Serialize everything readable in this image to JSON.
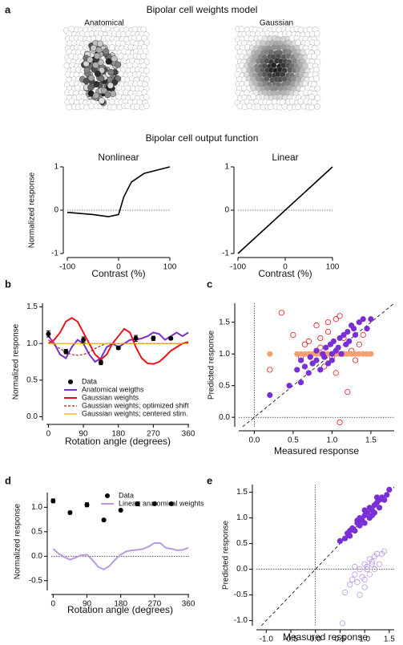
{
  "weights_model": {
    "panel": "a",
    "title": "Bipolar cell weights model",
    "images": [
      {
        "label": "Anatomical",
        "color": "#7a2ed6"
      },
      {
        "label": "Gaussian",
        "color": "#e8141c"
      }
    ]
  },
  "output_function_title": "Bipolar cell output function",
  "chart_data": [
    {
      "type": "line",
      "title": "Nonlinear",
      "xlabel": "Contrast (%)",
      "ylabel": "Normalized response",
      "x": [
        -100,
        -50,
        -20,
        0,
        10,
        25,
        50,
        100
      ],
      "xlim": [
        -100,
        100
      ],
      "xticks": [
        -100,
        0,
        100
      ],
      "ylim": [
        -1,
        1
      ],
      "yticks": [
        -1,
        0,
        1
      ],
      "zero_lines": "y",
      "series": [
        {
          "style": "line",
          "color": "#000000",
          "values": [
            -0.05,
            -0.1,
            -0.15,
            -0.1,
            0.3,
            0.65,
            0.85,
            1.0
          ]
        }
      ]
    },
    {
      "type": "line",
      "title": "Linear",
      "xlabel": "Contrast (%)",
      "x": [
        -100,
        100
      ],
      "xlim": [
        -100,
        100
      ],
      "xticks": [
        -100,
        0,
        100
      ],
      "ylim": [
        -1,
        1
      ],
      "yticks": [
        -1,
        0,
        1
      ],
      "zero_lines": "y",
      "series": [
        {
          "style": "line",
          "color": "#000000",
          "values": [
            -1,
            1
          ]
        }
      ]
    },
    {
      "type": "line",
      "panel": "b",
      "xlabel": "Rotation angle (degrees)",
      "ylabel": "Normalized response",
      "x": [
        0,
        15,
        30,
        45,
        60,
        75,
        90,
        105,
        120,
        135,
        150,
        165,
        180,
        195,
        210,
        225,
        240,
        255,
        270,
        285,
        300,
        315,
        330,
        345,
        360
      ],
      "xlim": [
        -5,
        362
      ],
      "xticks": [
        0,
        90,
        180,
        270,
        360
      ],
      "ylim": [
        -0.05,
        1.55
      ],
      "yticks": [
        {
          "value": 0,
          "label": "0.0"
        },
        0.5,
        {
          "value": 1,
          "label": "1.0"
        },
        1.5
      ],
      "legend": "lower left",
      "series": [
        {
          "name": "Data",
          "style": "points",
          "color": "#000000",
          "x": [
            0,
            45,
            90,
            135,
            180,
            225,
            270,
            315
          ],
          "values": [
            1.13,
            0.89,
            1.05,
            0.74,
            0.94,
            1.07,
            1.07,
            1.07
          ],
          "errors": [
            0.04,
            0.03,
            0.04,
            0.03,
            0.02,
            0.04,
            0.03,
            0.02
          ]
        },
        {
          "name": "Anatomical weigths",
          "style": "line",
          "color": "#7a2ed6",
          "values": [
            1.1,
            1.0,
            0.85,
            0.8,
            0.95,
            1.05,
            1.0,
            0.85,
            0.75,
            0.8,
            0.95,
            1.0,
            0.95,
            1.0,
            1.05,
            1.05,
            1.07,
            1.1,
            1.15,
            1.13,
            1.05,
            1.1,
            1.15,
            1.1,
            1.15
          ]
        },
        {
          "name": "Gaussian weights",
          "style": "line",
          "color": "#e8141c",
          "values": [
            1.0,
            1.05,
            1.15,
            1.3,
            1.35,
            1.3,
            1.15,
            1.0,
            0.85,
            0.78,
            0.85,
            1.0,
            1.1,
            1.2,
            1.15,
            0.95,
            0.8,
            0.73,
            0.72,
            0.75,
            0.82,
            0.9,
            0.95,
            1.0,
            1.02
          ]
        },
        {
          "name": "Gaussian weights; optimized shift",
          "style": "dashed",
          "color": "#b0201a",
          "values": [
            1.05,
            0.98,
            0.93,
            0.88,
            0.85,
            0.84,
            0.85,
            0.88,
            0.93,
            0.97,
            1.0,
            1.0,
            1.0,
            1.0,
            1.0,
            1.0,
            1.0,
            1.0,
            1.0,
            1.0,
            1.0,
            1.0,
            1.0,
            1.0,
            1.0
          ]
        },
        {
          "name": "Gaussian weights; centered stim.",
          "style": "thin",
          "color": "#f0a000",
          "values": [
            1.0,
            1.0,
            1.0,
            1.0,
            1.0,
            1.0,
            1.0,
            1.0,
            1.0,
            1.0,
            1.0,
            1.0,
            1.0,
            1.0,
            1.0,
            1.0,
            1.0,
            1.0,
            1.0,
            1.0,
            1.0,
            1.0,
            1.0,
            1.0,
            1.0
          ]
        }
      ]
    },
    {
      "type": "scatter",
      "panel": "c",
      "xlabel": "Measured response",
      "ylabel": "Predicted response",
      "xlim": [
        -0.2,
        1.8
      ],
      "xticks": [
        {
          "value": 0,
          "label": "0.0"
        },
        0.5,
        {
          "value": 1,
          "label": "1.0"
        },
        1.5
      ],
      "ylim": [
        -0.15,
        1.8
      ],
      "yticks": [
        {
          "value": 0,
          "label": "0.0"
        },
        0.5,
        {
          "value": 1,
          "label": "1.0"
        },
        1.5
      ],
      "zero_lines": "both",
      "diagonal": true,
      "series": [
        {
          "style": "open",
          "color": "#e8141c",
          "x": [
            0.2,
            0.35,
            0.5,
            0.6,
            0.7,
            0.75,
            0.8,
            0.85,
            0.9,
            0.95,
            1.0,
            1.05,
            1.1,
            1.1,
            1.15,
            1.2,
            1.25,
            1.3,
            1.35,
            1.4,
            0.95,
            1.05,
            0.65,
            1.15,
            0.85
          ],
          "values": [
            0.75,
            1.65,
            1.3,
            0.95,
            1.2,
            0.85,
            1.45,
            1.1,
            0.8,
            1.35,
            0.95,
            1.55,
            -0.08,
            1.6,
            1.25,
            0.4,
            1.05,
            0.9,
            1.15,
            1.3,
            1.5,
            0.7,
            1.15,
            1.0,
            1.25
          ]
        },
        {
          "style": "filled",
          "color": "#f4a070",
          "x": [
            0.2,
            0.55,
            0.6,
            0.65,
            0.7,
            0.75,
            0.8,
            0.85,
            0.9,
            0.95,
            1.0,
            1.05,
            1.1,
            1.15,
            1.2,
            1.25,
            1.3,
            1.35,
            1.4,
            1.45,
            1.5
          ],
          "values": [
            1.0,
            1.0,
            1.0,
            1.0,
            1.0,
            1.0,
            1.0,
            1.0,
            1.0,
            1.0,
            1.0,
            1.0,
            1.0,
            1.0,
            1.0,
            1.0,
            1.0,
            1.0,
            1.0,
            1.0,
            1.0
          ]
        },
        {
          "style": "filled",
          "color": "#7a2ed6",
          "x": [
            0.2,
            0.55,
            0.6,
            0.65,
            0.7,
            0.72,
            0.75,
            0.8,
            0.8,
            0.85,
            0.88,
            0.9,
            0.92,
            0.95,
            0.98,
            1.0,
            1.0,
            1.02,
            1.05,
            1.08,
            1.1,
            1.12,
            1.15,
            1.18,
            1.2,
            1.22,
            1.25,
            1.28,
            1.3,
            1.35,
            1.4,
            1.45,
            1.5,
            0.45,
            0.6
          ],
          "values": [
            0.35,
            0.75,
            0.55,
            0.8,
            0.7,
            0.95,
            0.85,
            0.9,
            1.05,
            0.75,
            1.0,
            0.95,
            1.1,
            0.85,
            1.15,
            1.0,
            0.9,
            1.2,
            1.05,
            1.1,
            1.25,
            1.0,
            1.3,
            1.15,
            1.35,
            1.2,
            1.45,
            1.4,
            1.3,
            1.5,
            1.55,
            1.4,
            1.55,
            0.5,
            0.9
          ]
        }
      ]
    },
    {
      "type": "line",
      "panel": "d",
      "xlabel": "Rotation angle (degrees)",
      "ylabel": "Normalized response",
      "x": [
        0,
        15,
        30,
        45,
        60,
        75,
        90,
        105,
        120,
        135,
        150,
        165,
        180,
        195,
        210,
        225,
        240,
        255,
        270,
        285,
        300,
        315,
        330,
        345,
        360
      ],
      "xlim": [
        -5,
        362
      ],
      "xticks": [
        0,
        90,
        180,
        270,
        360
      ],
      "ylim": [
        -0.7,
        1.3
      ],
      "yticks": [
        -0.5,
        {
          "value": 0,
          "label": "0.0"
        },
        0.5,
        {
          "value": 1,
          "label": "1.0"
        }
      ],
      "zero_lines": "y",
      "legend": "upper right",
      "series": [
        {
          "name": "Data",
          "style": "points",
          "color": "#000000",
          "x": [
            0,
            45,
            90,
            135,
            180,
            225,
            270,
            315
          ],
          "values": [
            1.13,
            0.89,
            1.05,
            0.74,
            0.94,
            1.07,
            1.07,
            1.07
          ],
          "errors": [
            0.04,
            0.03,
            0.04,
            0.03,
            0.02,
            0.04,
            0.03,
            0.02
          ]
        },
        {
          "name": "Linear; anatomical weights",
          "style": "line",
          "color": "#b89ae6",
          "values": [
            0.15,
            0.05,
            -0.02,
            -0.07,
            -0.03,
            0.02,
            0.03,
            -0.08,
            -0.22,
            -0.27,
            -0.2,
            -0.07,
            0.03,
            0.1,
            0.12,
            0.13,
            0.15,
            0.2,
            0.27,
            0.27,
            0.17,
            0.15,
            0.12,
            0.13,
            0.17
          ]
        }
      ]
    },
    {
      "type": "scatter",
      "panel": "e",
      "xlabel": "Measured response",
      "ylabel": "Predicted response",
      "xlim": [
        -1.2,
        1.6
      ],
      "xticks": [
        {
          "value": -1,
          "label": "-1.0"
        },
        -0.5,
        {
          "value": 0,
          "label": "0.0"
        },
        0.5,
        {
          "value": 1,
          "label": "1.0"
        },
        1.5
      ],
      "ylim": [
        -1.1,
        1.65
      ],
      "yticks": [
        {
          "value": -1,
          "label": "-1.0"
        },
        -0.5,
        {
          "value": 0,
          "label": "0.0"
        },
        0.5,
        {
          "value": 1,
          "label": "1.0"
        },
        1.5
      ],
      "zero_lines": "both",
      "diagonal": true,
      "series": [
        {
          "style": "open",
          "color": "#b89ae6",
          "x": [
            0.55,
            0.6,
            0.7,
            0.75,
            0.8,
            0.85,
            0.9,
            0.95,
            1.0,
            1.0,
            1.05,
            1.1,
            1.1,
            1.15,
            1.2,
            1.2,
            1.25,
            1.3,
            1.35,
            1.4,
            0.9,
            1.0,
            1.05,
            1.15,
            0.8
          ],
          "values": [
            -1.05,
            -0.45,
            -0.3,
            -0.2,
            -0.1,
            -0.25,
            0.0,
            -0.15,
            0.1,
            -0.35,
            0.05,
            0.2,
            -0.1,
            0.15,
            0.25,
            0.0,
            0.3,
            0.1,
            0.3,
            0.35,
            -0.5,
            -0.2,
            0.0,
            0.1,
            0.05
          ]
        },
        {
          "style": "filled",
          "color": "#7a2ed6",
          "x": [
            0.5,
            0.6,
            0.65,
            0.7,
            0.75,
            0.8,
            0.85,
            0.9,
            0.9,
            0.95,
            1.0,
            1.0,
            1.05,
            1.1,
            1.1,
            1.15,
            1.2,
            1.2,
            1.25,
            1.3,
            1.3,
            1.35,
            1.4,
            1.45,
            1.5,
            0.7,
            0.85,
            1.0,
            1.15,
            1.25
          ],
          "values": [
            0.55,
            0.6,
            0.7,
            0.65,
            0.8,
            0.75,
            0.9,
            0.85,
            1.0,
            0.95,
            1.05,
            0.9,
            1.1,
            1.0,
            1.2,
            1.15,
            1.1,
            1.25,
            1.3,
            1.2,
            1.35,
            1.4,
            1.35,
            1.45,
            1.55,
            0.75,
            0.95,
            1.15,
            1.05,
            1.4
          ]
        }
      ]
    }
  ]
}
